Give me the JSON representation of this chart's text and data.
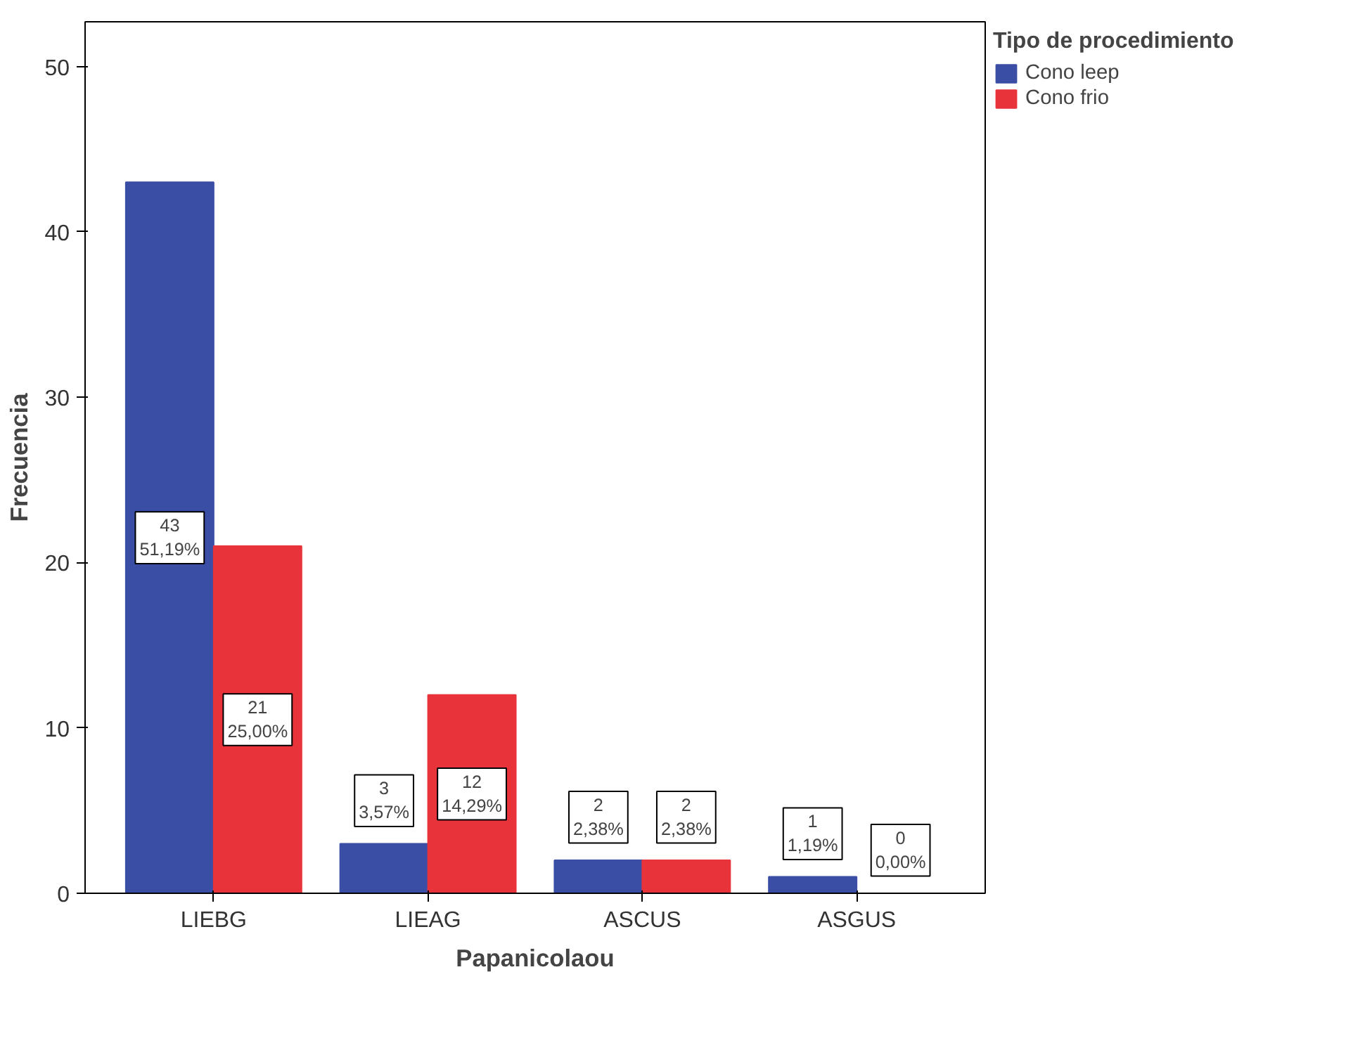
{
  "chart_data": {
    "type": "bar",
    "xlabel": "Papanicolaou",
    "ylabel": "Frecuencia",
    "legend_title": "Tipo de procedimiento",
    "categories": [
      "LIEBG",
      "LIEAG",
      "ASCUS",
      "ASGUS"
    ],
    "series": [
      {
        "name": "Cono leep",
        "color": "#3a4ea6",
        "values": [
          43,
          3,
          2,
          1
        ],
        "value_labels": [
          "43\n51,19%",
          "3\n3,57%",
          "2\n2,38%",
          "1\n1,19%"
        ]
      },
      {
        "name": "Cono frio",
        "color": "#e8333b",
        "values": [
          21,
          12,
          2,
          0
        ],
        "value_labels": [
          "21\n25,00%",
          "12\n14,29%",
          "2\n2,38%",
          "0\n0,00%"
        ]
      }
    ],
    "ylim": [
      0,
      52.7
    ],
    "yticks": [
      0,
      10,
      20,
      30,
      40,
      50
    ],
    "grid": false,
    "legend": "top right"
  }
}
